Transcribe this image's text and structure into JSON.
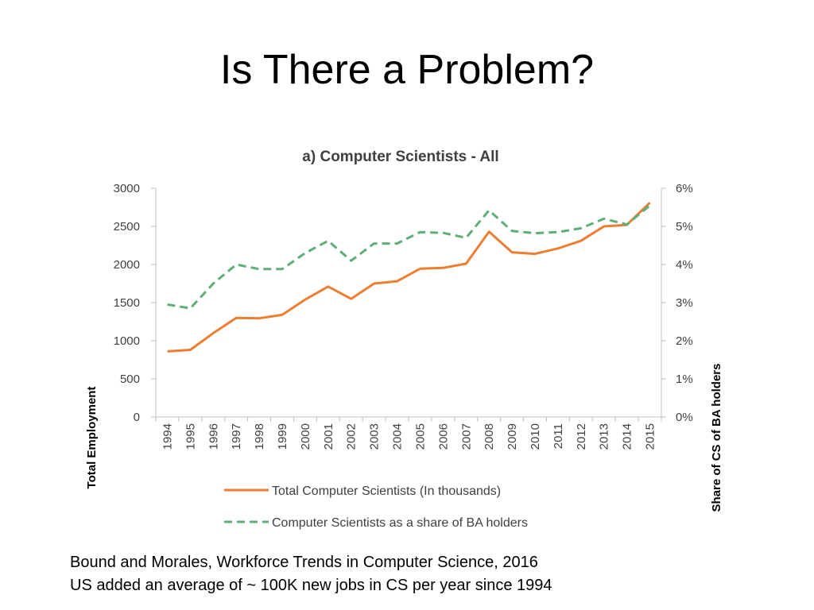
{
  "slide": {
    "title": "Is There a Problem?"
  },
  "footnote": {
    "line1": "Bound and Morales, Workforce Trends in Computer Science, 2016",
    "line2": "US added an average of ~ 100K new jobs in CS per year since 1994"
  },
  "chart_data": {
    "type": "line",
    "title": "a) Computer Scientists - All",
    "xlabel": "",
    "ylabel": "Total Employment",
    "y2label": "Share of CS of BA holders",
    "x": [
      "1994",
      "1995",
      "1996",
      "1997",
      "1998",
      "1999",
      "2000",
      "2001",
      "2002",
      "2003",
      "2004",
      "2005",
      "2006",
      "2007",
      "2008",
      "2009",
      "2010",
      "2011",
      "2012",
      "2013",
      "2014",
      "2015"
    ],
    "ylim": [
      0,
      3000
    ],
    "yticks": [
      0,
      500,
      1000,
      1500,
      2000,
      2500,
      3000
    ],
    "y2lim": [
      0,
      6
    ],
    "y2ticks": [
      "0%",
      "1%",
      "2%",
      "3%",
      "4%",
      "5%",
      "6%"
    ],
    "legend_position": "bottom",
    "grid": false,
    "series": [
      {
        "name": "Total Computer Scientists (In thousands)",
        "axis": "left",
        "style": "solid",
        "color": "#ED7D31",
        "values": [
          860,
          880,
          1100,
          1300,
          1295,
          1340,
          1540,
          1710,
          1550,
          1750,
          1780,
          1945,
          1955,
          2010,
          2430,
          2160,
          2140,
          2210,
          2310,
          2500,
          2520,
          2810
        ]
      },
      {
        "name": "Computer Scientists as a share of BA holders",
        "axis": "right",
        "style": "dashed",
        "color": "#5FAE78",
        "values": [
          2.95,
          2.85,
          3.5,
          4.0,
          3.88,
          3.88,
          4.3,
          4.62,
          4.1,
          4.55,
          4.55,
          4.85,
          4.83,
          4.7,
          5.42,
          4.88,
          4.82,
          4.85,
          4.95,
          5.2,
          5.05,
          5.55
        ]
      }
    ]
  }
}
